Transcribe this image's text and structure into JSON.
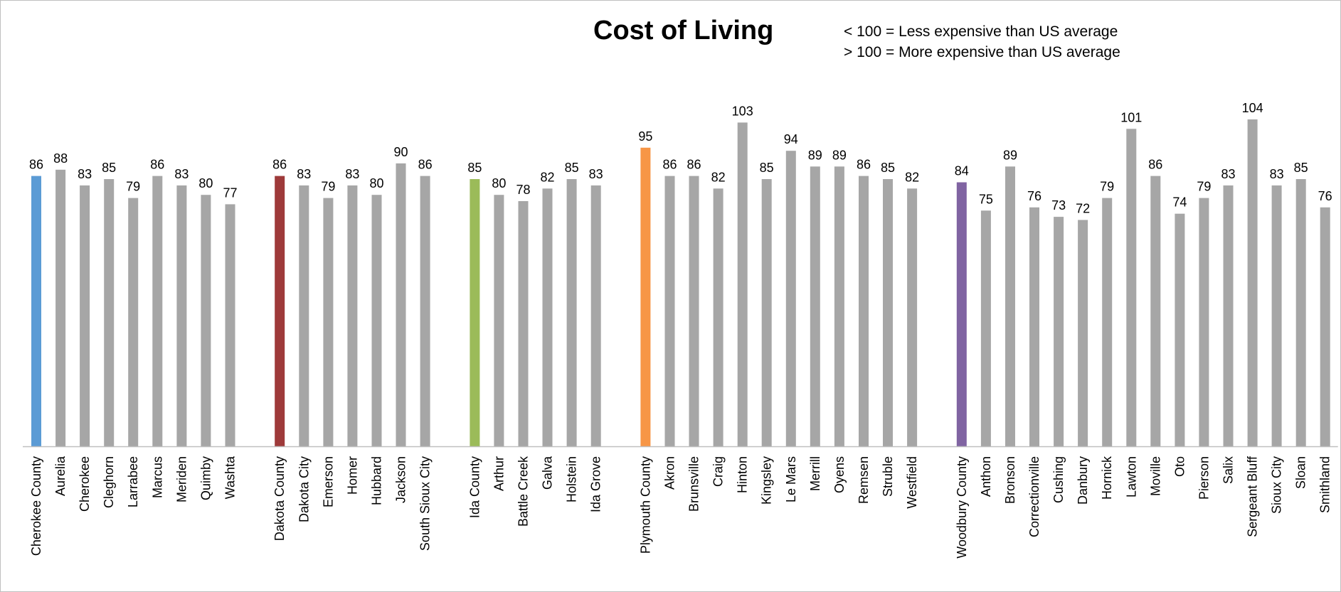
{
  "chart_data": {
    "type": "bar",
    "title": "Cost of Living",
    "notes": [
      "< 100 = Less expensive than US average",
      "> 100 = More expensive than US average"
    ],
    "ylim": [
      0,
      104
    ],
    "grid": false,
    "colors": {
      "default": "#a6a6a6",
      "cherokee": "#5b9bd5",
      "dakota": "#9e3a3a",
      "ida": "#9bbb59",
      "plymouth": "#f79646",
      "woodbury": "#8064a2"
    },
    "groups": [
      {
        "color_key": "cherokee",
        "categories": [
          "Cherokee County",
          "Aurelia",
          "Cherokee",
          "Cleghorn",
          "Larrabee",
          "Marcus",
          "Meriden",
          "Quimby",
          "Washta"
        ],
        "values": [
          86,
          88,
          83,
          85,
          79,
          86,
          83,
          80,
          77
        ]
      },
      {
        "color_key": "dakota",
        "categories": [
          "Dakota County",
          "Dakota City",
          "Emerson",
          "Homer",
          "Hubbard",
          "Jackson",
          "South Sioux City"
        ],
        "values": [
          86,
          83,
          79,
          83,
          80,
          90,
          86
        ]
      },
      {
        "color_key": "ida",
        "categories": [
          "Ida County",
          "Arthur",
          "Battle Creek",
          "Galva",
          "Holstein",
          "Ida Grove"
        ],
        "values": [
          85,
          80,
          78,
          82,
          85,
          83
        ]
      },
      {
        "color_key": "plymouth",
        "categories": [
          "Plymouth County",
          "Akron",
          "Brunsville",
          "Craig",
          "Hinton",
          "Kingsley",
          "Le Mars",
          "Merrill",
          "Oyens",
          "Remsen",
          "Struble",
          "Westfield"
        ],
        "values": [
          95,
          86,
          86,
          82,
          103,
          85,
          94,
          89,
          89,
          86,
          85,
          82
        ]
      },
      {
        "color_key": "woodbury",
        "categories": [
          "Woodbury County",
          "Anthon",
          "Bronson",
          "Correctionville",
          "Cushing",
          "Danbury",
          "Hornick",
          "Lawton",
          "Moville",
          "Oto",
          "Pierson",
          "Salix",
          "Sergeant Bluff",
          "Sioux City",
          "Sloan",
          "Smithland"
        ],
        "values": [
          84,
          75,
          89,
          76,
          73,
          72,
          79,
          101,
          86,
          74,
          79,
          83,
          104,
          83,
          85,
          76
        ]
      }
    ]
  }
}
